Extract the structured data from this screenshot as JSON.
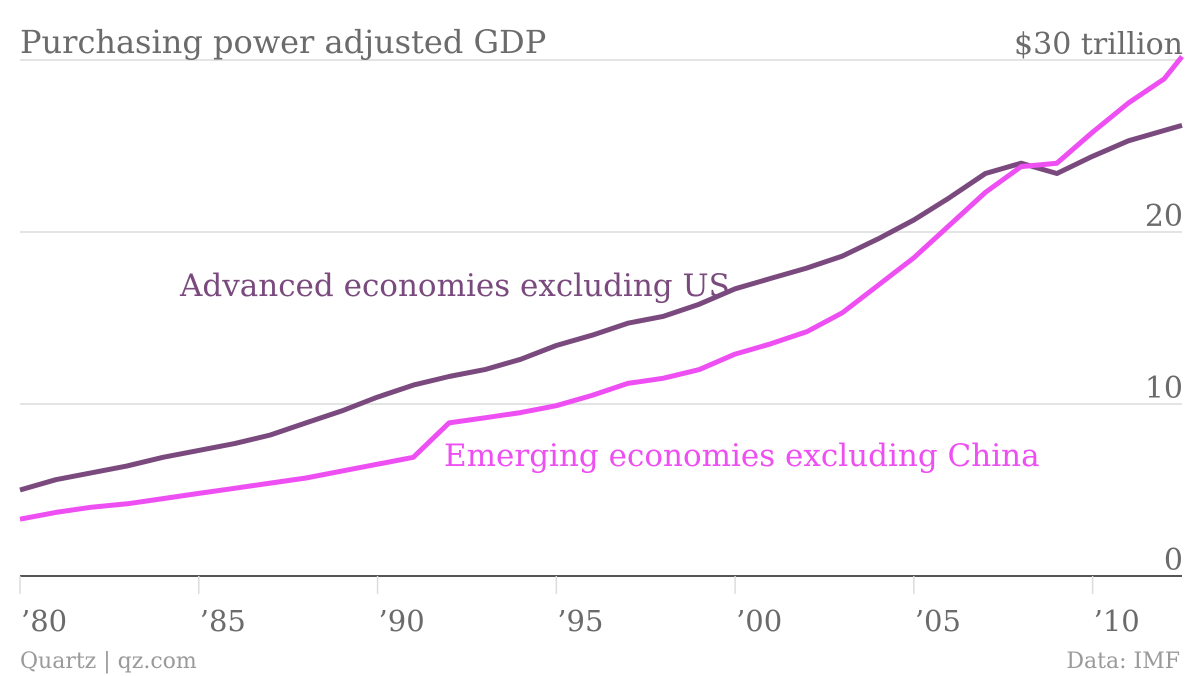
{
  "chart_data": {
    "type": "line",
    "title": "Purchasing power adjusted GDP",
    "ylabel": "",
    "xlabel": "",
    "ylim": [
      0,
      30
    ],
    "xlim": [
      1980,
      2012.5
    ],
    "y_ticks": [
      {
        "value": 0,
        "label": "0"
      },
      {
        "value": 10,
        "label": "10"
      },
      {
        "value": 20,
        "label": "20"
      },
      {
        "value": 30,
        "label": "$30 trillion"
      }
    ],
    "x_ticks": [
      {
        "value": 1980,
        "label": "’80"
      },
      {
        "value": 1985,
        "label": "’85"
      },
      {
        "value": 1990,
        "label": "’90"
      },
      {
        "value": 1995,
        "label": "’95"
      },
      {
        "value": 2000,
        "label": "’00"
      },
      {
        "value": 2005,
        "label": "’05"
      },
      {
        "value": 2010,
        "label": "’10"
      }
    ],
    "grid": true,
    "legend": "inline labels",
    "series": [
      {
        "name": "Advanced economies excluding US",
        "color": "#7a4a7e",
        "x": [
          1980,
          1981,
          1982,
          1983,
          1984,
          1985,
          1986,
          1987,
          1988,
          1989,
          1990,
          1991,
          1992,
          1993,
          1994,
          1995,
          1996,
          1997,
          1998,
          1999,
          2000,
          2001,
          2002,
          2003,
          2004,
          2005,
          2006,
          2007,
          2008,
          2009,
          2010,
          2011,
          2012,
          2012.5
        ],
        "y": [
          5.0,
          5.6,
          6.0,
          6.4,
          6.9,
          7.3,
          7.7,
          8.2,
          8.9,
          9.6,
          10.4,
          11.1,
          11.6,
          12.0,
          12.6,
          13.4,
          14.0,
          14.7,
          15.1,
          15.8,
          16.7,
          17.3,
          17.9,
          18.6,
          19.6,
          20.7,
          22.0,
          23.4,
          24.0,
          23.4,
          24.4,
          25.3,
          25.9,
          26.2
        ]
      },
      {
        "name": "Emerging economies excluding China",
        "color": "#ee4ff2",
        "x": [
          1980,
          1981,
          1982,
          1983,
          1984,
          1985,
          1986,
          1987,
          1988,
          1989,
          1990,
          1991,
          1992,
          1993,
          1994,
          1995,
          1996,
          1997,
          1998,
          1999,
          2000,
          2001,
          2002,
          2003,
          2004,
          2005,
          2006,
          2007,
          2008,
          2009,
          2010,
          2011,
          2012,
          2012.5
        ],
        "y": [
          3.3,
          3.7,
          4.0,
          4.2,
          4.5,
          4.8,
          5.1,
          5.4,
          5.7,
          6.1,
          6.5,
          6.9,
          8.9,
          9.2,
          9.5,
          9.9,
          10.5,
          11.2,
          11.5,
          12.0,
          12.9,
          13.5,
          14.2,
          15.3,
          16.9,
          18.5,
          20.4,
          22.3,
          23.8,
          24.0,
          25.8,
          27.5,
          28.9,
          30.2
        ]
      }
    ]
  },
  "footer": {
    "source_left": "Quartz | qz.com",
    "source_right": "Data: IMF"
  }
}
